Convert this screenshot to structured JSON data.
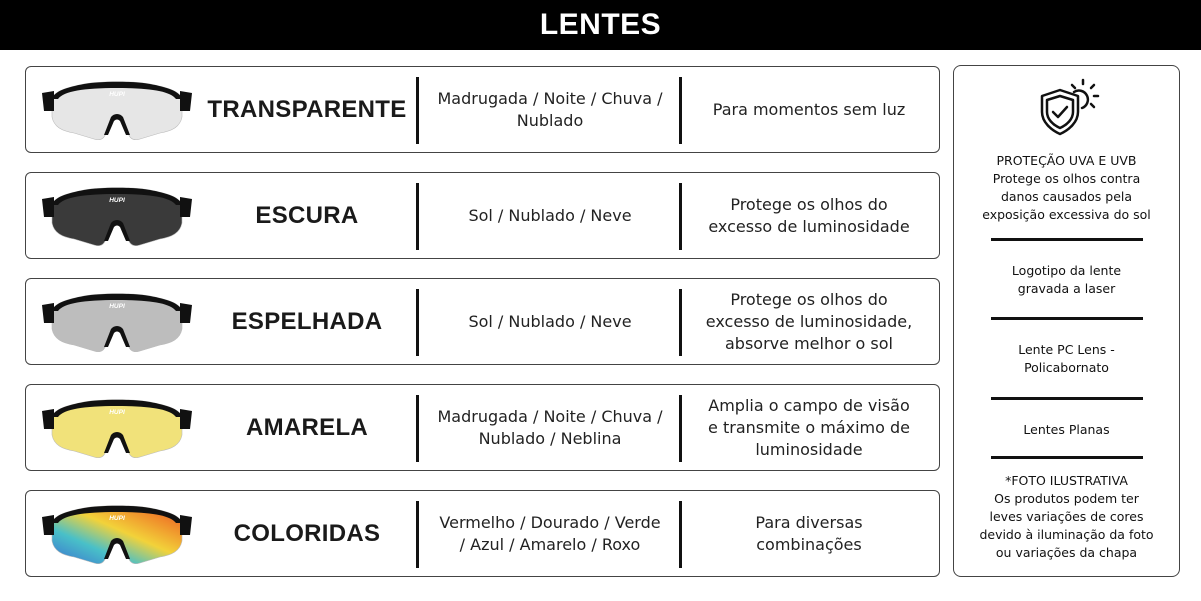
{
  "header": {
    "title": "LENTES"
  },
  "lenses": [
    {
      "name": "TRANSPARENTE",
      "conditions": "Madrugada / Noite / Chuva / Nublado",
      "use": "Para momentos sem luz",
      "lens_color": "#e6e6e6",
      "logo": "HUPI"
    },
    {
      "name": "ESCURA",
      "conditions": "Sol / Nublado / Neve",
      "use": "Protege os olhos do excesso de luminosidade",
      "lens_color": "#3a3a3a",
      "logo": "HUPI"
    },
    {
      "name": "ESPELHADA",
      "conditions": "Sol / Nublado / Neve",
      "use": "Protege os olhos do excesso de luminosidade, absorve melhor o sol",
      "lens_color": "#bdbdbd",
      "logo": "HUPI"
    },
    {
      "name": "AMARELA",
      "conditions": "Madrugada / Noite / Chuva / Nublado / Neblina",
      "use": "Amplia o campo de visão e transmite o máximo de luminosidade",
      "lens_color": "#f1e27a",
      "logo": "HUPI"
    },
    {
      "name": "COLORIDAS",
      "conditions": "Vermelho / Dourado / Verde / Azul / Amarelo / Roxo",
      "use": "Para diversas combinações",
      "lens_color": "gradient",
      "logo": "HUPI"
    }
  ],
  "panel": {
    "icon": "shield-sun-icon",
    "protection_title": "PROTEÇÃO UVA E UVB",
    "protection_text": "Protege os olhos contra danos causados pela exposição excessiva do sol",
    "logo_text": "Logotipo da lente gravada a laser",
    "material_text": "Lente PC Lens - Policabornato",
    "flat_text": "Lentes Planas",
    "disclaimer_title": "*FOTO ILUSTRATIVA",
    "disclaimer_text": "Os produtos podem ter leves variações de cores devido à iluminação da foto ou variações da chapa"
  }
}
